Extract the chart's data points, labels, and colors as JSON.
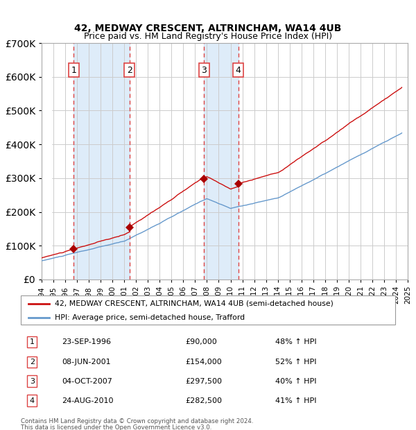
{
  "title": "42, MEDWAY CRESCENT, ALTRINCHAM, WA14 4UB",
  "subtitle": "Price paid vs. HM Land Registry's House Price Index (HPI)",
  "ylim": [
    0,
    700000
  ],
  "yticks": [
    0,
    100000,
    200000,
    300000,
    400000,
    500000,
    600000,
    700000
  ],
  "sale_dates": [
    1996.73,
    2001.44,
    2007.75,
    2010.65
  ],
  "sale_prices": [
    90000,
    154000,
    297500,
    282500
  ],
  "sale_labels": [
    "1",
    "2",
    "3",
    "4"
  ],
  "sale_pct": [
    "48% ↑ HPI",
    "52% ↑ HPI",
    "40% ↑ HPI",
    "41% ↑ HPI"
  ],
  "sale_date_strs": [
    "23-SEP-1996",
    "08-JUN-2001",
    "04-OCT-2007",
    "24-AUG-2010"
  ],
  "sale_price_strs": [
    "£90,000",
    "£154,000",
    "£297,500",
    "£282,500"
  ],
  "hpi_color": "#6699cc",
  "price_color": "#cc1111",
  "marker_color": "#aa0000",
  "vline_color": "#dd4444",
  "shade_color": "#d0e4f7",
  "grid_color": "#cccccc",
  "background_color": "#ffffff",
  "legend_line1": "42, MEDWAY CRESCENT, ALTRINCHAM, WA14 4UB (semi-detached house)",
  "legend_line2": "HPI: Average price, semi-detached house, Trafford",
  "footer1": "Contains HM Land Registry data © Crown copyright and database right 2024.",
  "footer2": "This data is licensed under the Open Government Licence v3.0.",
  "xstart": 1994,
  "xend": 2025
}
